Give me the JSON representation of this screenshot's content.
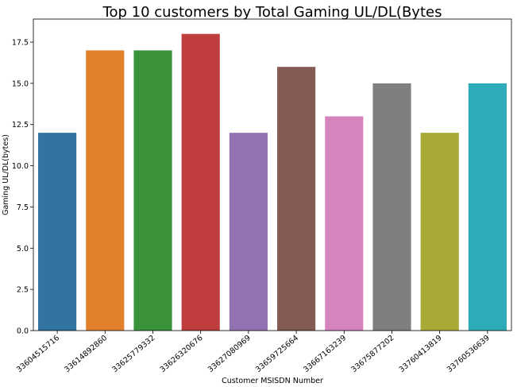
{
  "chart_data": {
    "type": "bar",
    "title": "Top 10 customers by Total Gaming UL/DL(Bytes",
    "xlabel": "Customer MSISDN Number",
    "ylabel": "Gaming UL/DL(bytes)",
    "categories": [
      "33604515716",
      "33614892860",
      "33625779332",
      "33626320676",
      "33627080969",
      "33659725664",
      "33667163239",
      "33675877202",
      "33760413819",
      "33760536639"
    ],
    "values": [
      12,
      17,
      17,
      18,
      12,
      16,
      13,
      15,
      12,
      15
    ],
    "ylim": [
      0,
      18.9
    ],
    "yticks": [
      "0.0",
      "2.5",
      "5.0",
      "7.5",
      "10.0",
      "12.5",
      "15.0",
      "17.5"
    ],
    "grid": false,
    "colors": [
      "#3274a1",
      "#e1812c",
      "#3a923a",
      "#c03d3e",
      "#9372b2",
      "#845b53",
      "#d684bd",
      "#7f7f7f",
      "#a9aa35",
      "#2eabb8"
    ]
  }
}
